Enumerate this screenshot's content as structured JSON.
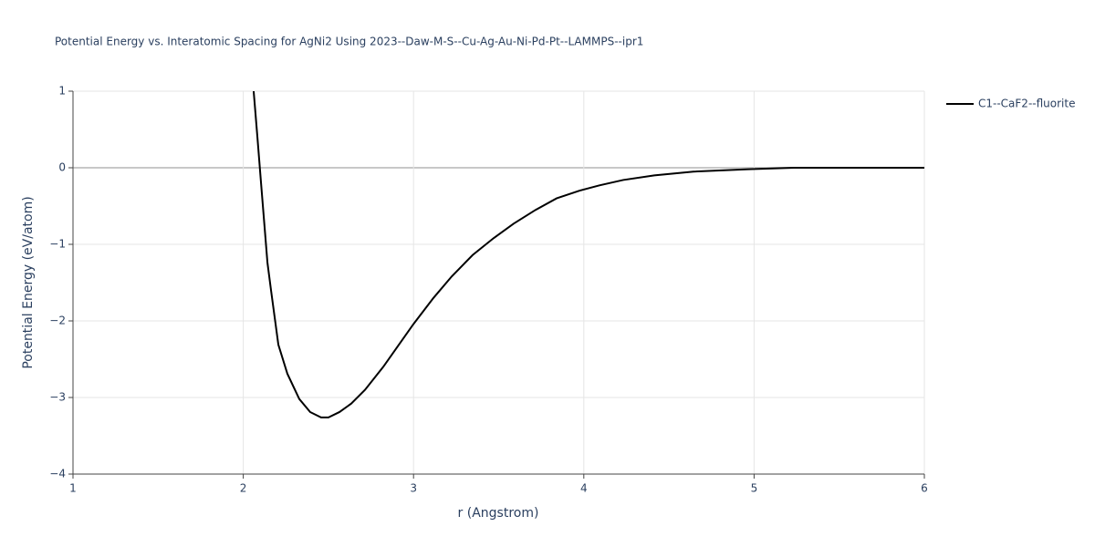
{
  "chart_data": {
    "type": "line",
    "title": "Potential Energy vs. Interatomic Spacing for AgNi2 Using 2023--Daw-M-S--Cu-Ag-Au-Ni-Pd-Pt--LAMMPS--ipr1",
    "x_label": "r (Angstrom)",
    "y_label": "Potential Energy (eV/atom)",
    "xlim": [
      1,
      6
    ],
    "xticks": [
      1,
      2,
      3,
      4,
      5,
      6
    ],
    "ylim": [
      -4,
      1
    ],
    "yticks": [
      {
        "value": -4,
        "label": "−4"
      },
      {
        "value": -3,
        "label": "−3"
      },
      {
        "value": -2,
        "label": "−2"
      },
      {
        "value": -1,
        "label": "−1"
      },
      0,
      1
    ],
    "grid": true,
    "legend": "right",
    "series": [
      {
        "name": "C1--CaF2--fluorite",
        "color": "#000000",
        "x": [
          2.061,
          2.083,
          2.104,
          2.142,
          2.163,
          2.206,
          2.259,
          2.329,
          2.393,
          2.457,
          2.5,
          2.565,
          2.634,
          2.715,
          2.822,
          3.0,
          3.117,
          3.224,
          3.347,
          3.47,
          3.588,
          3.717,
          3.84,
          3.974,
          4.092,
          4.231,
          4.414,
          4.644,
          4.966,
          5.234,
          5.66,
          6.0
        ],
        "values": [
          1.0,
          0.4,
          -0.19,
          -1.24,
          -1.6,
          -2.31,
          -2.69,
          -3.02,
          -3.19,
          -3.26,
          -3.26,
          -3.19,
          -3.08,
          -2.9,
          -2.6,
          -2.04,
          -1.7,
          -1.42,
          -1.14,
          -0.92,
          -0.73,
          -0.55,
          -0.4,
          -0.3,
          -0.23,
          -0.16,
          -0.1,
          -0.05,
          -0.02,
          0,
          0,
          0
        ]
      }
    ]
  }
}
